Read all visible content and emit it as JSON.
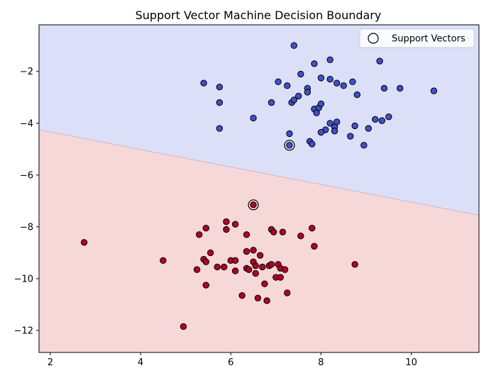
{
  "chart_data": {
    "type": "scatter",
    "title": "Support Vector Machine Decision Boundary",
    "xlabel": "",
    "ylabel": "",
    "xlim": [
      1.75,
      11.5
    ],
    "ylim": [
      -12.85,
      -0.2
    ],
    "xticks": [
      2,
      4,
      6,
      8,
      10
    ],
    "yticks": [
      -2,
      -4,
      -6,
      -8,
      -10,
      -12
    ],
    "grid": false,
    "legend": {
      "placement": "top-right",
      "entries": [
        "Support Vectors"
      ]
    },
    "decision_boundary": {
      "x": [
        1.75,
        11.5
      ],
      "y": [
        -4.25,
        -7.55
      ]
    },
    "regions": {
      "upper_color": "#dbe0f8",
      "lower_color": "#f6d8d8"
    },
    "series": [
      {
        "class": "upper",
        "color": "#4050c8",
        "points": [
          [
            7.4,
            -1.0
          ],
          [
            7.85,
            -1.7
          ],
          [
            8.2,
            -1.55
          ],
          [
            9.3,
            -1.6
          ],
          [
            5.4,
            -2.45
          ],
          [
            5.75,
            -2.6
          ],
          [
            7.05,
            -2.4
          ],
          [
            7.25,
            -2.55
          ],
          [
            7.55,
            -2.1
          ],
          [
            8.0,
            -2.25
          ],
          [
            8.2,
            -2.3
          ],
          [
            8.35,
            -2.45
          ],
          [
            8.5,
            -2.55
          ],
          [
            8.7,
            -2.4
          ],
          [
            7.7,
            -2.65
          ],
          [
            9.4,
            -2.65
          ],
          [
            9.75,
            -2.65
          ],
          [
            10.5,
            -2.75
          ],
          [
            5.75,
            -3.2
          ],
          [
            6.9,
            -3.2
          ],
          [
            7.35,
            -3.2
          ],
          [
            7.4,
            -3.1
          ],
          [
            7.5,
            -2.95
          ],
          [
            7.7,
            -2.8
          ],
          [
            7.85,
            -3.45
          ],
          [
            7.9,
            -3.6
          ],
          [
            7.95,
            -3.4
          ],
          [
            8.0,
            -3.25
          ],
          [
            8.8,
            -2.9
          ],
          [
            9.2,
            -3.85
          ],
          [
            9.35,
            -3.9
          ],
          [
            9.5,
            -3.75
          ],
          [
            6.5,
            -3.8
          ],
          [
            5.75,
            -4.2
          ],
          [
            8.2,
            -4.0
          ],
          [
            8.35,
            -3.95
          ],
          [
            8.3,
            -4.15
          ],
          [
            8.3,
            -4.3
          ],
          [
            8.1,
            -4.25
          ],
          [
            8.0,
            -4.35
          ],
          [
            8.75,
            -4.1
          ],
          [
            9.05,
            -4.2
          ],
          [
            8.65,
            -4.5
          ],
          [
            7.3,
            -4.4
          ],
          [
            7.75,
            -4.7
          ],
          [
            7.8,
            -4.8
          ],
          [
            8.95,
            -4.85
          ],
          [
            7.3,
            -4.85
          ]
        ]
      },
      {
        "class": "lower",
        "color": "#b00026",
        "points": [
          [
            6.5,
            -7.15
          ],
          [
            5.9,
            -7.8
          ],
          [
            6.1,
            -7.9
          ],
          [
            5.3,
            -8.3
          ],
          [
            5.45,
            -8.05
          ],
          [
            5.9,
            -8.1
          ],
          [
            6.35,
            -8.3
          ],
          [
            6.9,
            -8.1
          ],
          [
            6.95,
            -8.2
          ],
          [
            7.15,
            -8.2
          ],
          [
            7.55,
            -8.35
          ],
          [
            7.8,
            -8.05
          ],
          [
            2.75,
            -8.6
          ],
          [
            7.85,
            -8.75
          ],
          [
            6.35,
            -8.95
          ],
          [
            6.5,
            -8.9
          ],
          [
            5.55,
            -9.0
          ],
          [
            5.4,
            -9.25
          ],
          [
            5.45,
            -9.35
          ],
          [
            6.0,
            -9.3
          ],
          [
            6.1,
            -9.3
          ],
          [
            6.65,
            -9.1
          ],
          [
            4.5,
            -9.3
          ],
          [
            5.25,
            -9.65
          ],
          [
            5.7,
            -9.55
          ],
          [
            5.85,
            -9.55
          ],
          [
            6.1,
            -9.7
          ],
          [
            6.35,
            -9.6
          ],
          [
            6.4,
            -9.65
          ],
          [
            6.5,
            -9.35
          ],
          [
            6.55,
            -9.5
          ],
          [
            6.55,
            -9.8
          ],
          [
            6.7,
            -9.55
          ],
          [
            6.85,
            -9.5
          ],
          [
            6.9,
            -9.45
          ],
          [
            7.05,
            -9.45
          ],
          [
            7.1,
            -9.6
          ],
          [
            7.2,
            -9.65
          ],
          [
            7.0,
            -9.95
          ],
          [
            7.1,
            -9.95
          ],
          [
            8.75,
            -9.45
          ],
          [
            5.45,
            -10.25
          ],
          [
            6.75,
            -10.2
          ],
          [
            6.25,
            -10.65
          ],
          [
            7.25,
            -10.55
          ],
          [
            6.6,
            -10.75
          ],
          [
            6.8,
            -10.85
          ],
          [
            4.95,
            -11.85
          ]
        ]
      }
    ],
    "support_vectors": [
      [
        7.3,
        -4.85
      ],
      [
        6.5,
        -7.15
      ]
    ]
  }
}
